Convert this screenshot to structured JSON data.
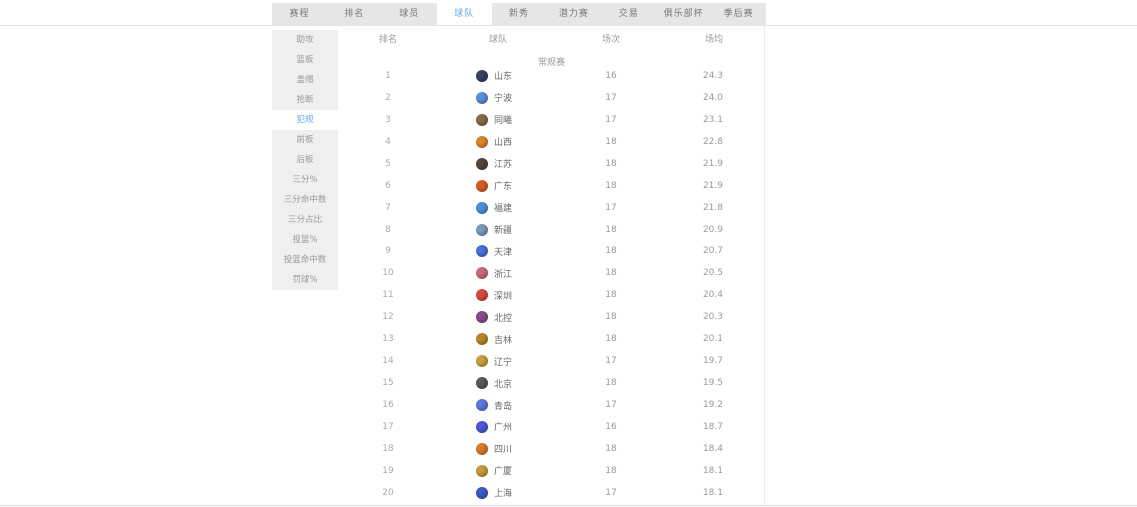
{
  "nav": {
    "tabs": [
      {
        "label": "赛程",
        "active": false
      },
      {
        "label": "排名",
        "active": false
      },
      {
        "label": "球员",
        "active": false
      },
      {
        "label": "球队",
        "active": true
      },
      {
        "label": "新秀",
        "active": false
      },
      {
        "label": "潜力赛",
        "active": false
      },
      {
        "label": "交易",
        "active": false
      },
      {
        "label": "俱乐部杯",
        "active": false
      },
      {
        "label": "季后赛",
        "active": false
      }
    ]
  },
  "sidebar": {
    "items": [
      {
        "label": "助攻",
        "active": false
      },
      {
        "label": "篮板",
        "active": false
      },
      {
        "label": "盖帽",
        "active": false
      },
      {
        "label": "抢断",
        "active": false
      },
      {
        "label": "犯规",
        "active": true
      },
      {
        "label": "前板",
        "active": false
      },
      {
        "label": "后板",
        "active": false
      },
      {
        "label": "三分%",
        "active": false
      },
      {
        "label": "三分命中数",
        "active": false
      },
      {
        "label": "三分占比",
        "active": false
      },
      {
        "label": "投篮%",
        "active": false
      },
      {
        "label": "投篮命中数",
        "active": false
      },
      {
        "label": "罚球%",
        "active": false
      }
    ]
  },
  "table": {
    "section_title": "常规赛",
    "columns": [
      "排名",
      "球队",
      "场次",
      "场均"
    ],
    "rows": [
      {
        "rank": "1",
        "team": "山东",
        "games": "16",
        "avg": "24.3",
        "logo": "#3a3f63"
      },
      {
        "rank": "2",
        "team": "宁波",
        "games": "17",
        "avg": "24.0",
        "logo": "#5b8fd6"
      },
      {
        "rank": "3",
        "team": "同曦",
        "games": "17",
        "avg": "23.1",
        "logo": "#8a6a4a"
      },
      {
        "rank": "4",
        "team": "山西",
        "games": "18",
        "avg": "22.8",
        "logo": "#d8842a"
      },
      {
        "rank": "5",
        "team": "江苏",
        "games": "18",
        "avg": "21.9",
        "logo": "#50473f"
      },
      {
        "rank": "6",
        "team": "广东",
        "games": "18",
        "avg": "21.9",
        "logo": "#d85a2a"
      },
      {
        "rank": "7",
        "team": "福建",
        "games": "17",
        "avg": "21.8",
        "logo": "#4a90d8"
      },
      {
        "rank": "8",
        "team": "新疆",
        "games": "18",
        "avg": "20.9",
        "logo": "#7a9ab8"
      },
      {
        "rank": "9",
        "team": "天津",
        "games": "18",
        "avg": "20.7",
        "logo": "#4a6fd8"
      },
      {
        "rank": "10",
        "team": "浙江",
        "games": "18",
        "avg": "20.5",
        "logo": "#c86a7a"
      },
      {
        "rank": "11",
        "team": "深圳",
        "games": "18",
        "avg": "20.4",
        "logo": "#d84a3a"
      },
      {
        "rank": "12",
        "team": "北控",
        "games": "18",
        "avg": "20.3",
        "logo": "#8a4a8a"
      },
      {
        "rank": "13",
        "team": "吉林",
        "games": "18",
        "avg": "20.1",
        "logo": "#b8862a"
      },
      {
        "rank": "14",
        "team": "辽宁",
        "games": "17",
        "avg": "19.7",
        "logo": "#c8a03a"
      },
      {
        "rank": "15",
        "team": "北京",
        "games": "18",
        "avg": "19.5",
        "logo": "#5a5a5a"
      },
      {
        "rank": "16",
        "team": "青岛",
        "games": "17",
        "avg": "19.2",
        "logo": "#5a7ad8"
      },
      {
        "rank": "17",
        "team": "广州",
        "games": "16",
        "avg": "18.7",
        "logo": "#4a5ad8"
      },
      {
        "rank": "18",
        "team": "四川",
        "games": "18",
        "avg": "18.4",
        "logo": "#d87a2a"
      },
      {
        "rank": "19",
        "team": "广厦",
        "games": "18",
        "avg": "18.1",
        "logo": "#c89a3a"
      },
      {
        "rank": "20",
        "team": "上海",
        "games": "17",
        "avg": "18.1",
        "logo": "#3a5ac8"
      }
    ]
  },
  "colors": {
    "accent_blue": "#63a8ea",
    "tab_bg": "#e6e6e6",
    "sidebar_bg": "#efefef",
    "divider": "#e4e4e9"
  }
}
